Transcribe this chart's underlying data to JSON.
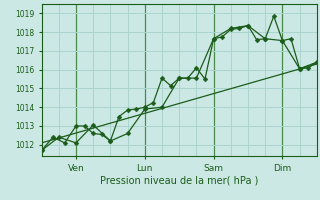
{
  "xlabel": "Pression niveau de la mer( hPa )",
  "bg_color": "#cce8e4",
  "grid_color": "#aad4ce",
  "day_line_color": "#4a8a4a",
  "line_color": "#1a5c1a",
  "ylim": [
    1011.4,
    1019.5
  ],
  "yticks": [
    1012,
    1013,
    1014,
    1015,
    1016,
    1017,
    1018,
    1019
  ],
  "day_labels": [
    "Ven",
    "Lun",
    "Sam",
    "Dim"
  ],
  "day_positions": [
    1,
    3,
    5,
    7
  ],
  "xlim": [
    0,
    8.0
  ],
  "series1_x": [
    0.0,
    0.33,
    0.67,
    1.0,
    1.25,
    1.5,
    1.75,
    2.0,
    2.25,
    2.5,
    2.75,
    3.0,
    3.25,
    3.5,
    3.75,
    4.0,
    4.25,
    4.5,
    4.75,
    5.0,
    5.25,
    5.5,
    5.75,
    6.0,
    6.25,
    6.5,
    6.75,
    7.0,
    7.25,
    7.5,
    7.75,
    8.0
  ],
  "series1_y": [
    1011.7,
    1012.4,
    1012.1,
    1013.0,
    1013.0,
    1012.6,
    1012.55,
    1012.2,
    1013.5,
    1013.85,
    1013.9,
    1014.0,
    1014.25,
    1015.55,
    1015.15,
    1015.55,
    1015.55,
    1016.1,
    1015.5,
    1017.65,
    1017.75,
    1018.15,
    1018.2,
    1018.35,
    1017.6,
    1017.65,
    1018.85,
    1017.55,
    1017.65,
    1016.05,
    1016.1,
    1016.4
  ],
  "series2_x": [
    0.0,
    0.5,
    1.0,
    1.5,
    2.0,
    2.5,
    3.0,
    3.5,
    4.0,
    4.5,
    5.0,
    5.5,
    6.0,
    6.5,
    7.0,
    7.5,
    8.0
  ],
  "series2_y": [
    1011.7,
    1012.4,
    1012.1,
    1013.05,
    1012.2,
    1012.6,
    1013.9,
    1014.0,
    1015.55,
    1015.55,
    1017.65,
    1018.2,
    1018.35,
    1017.65,
    1017.55,
    1016.05,
    1016.4
  ],
  "trend_x": [
    0.0,
    8.0
  ],
  "trend_y": [
    1012.1,
    1016.3
  ],
  "marker_size": 2.5,
  "linewidth": 0.9
}
